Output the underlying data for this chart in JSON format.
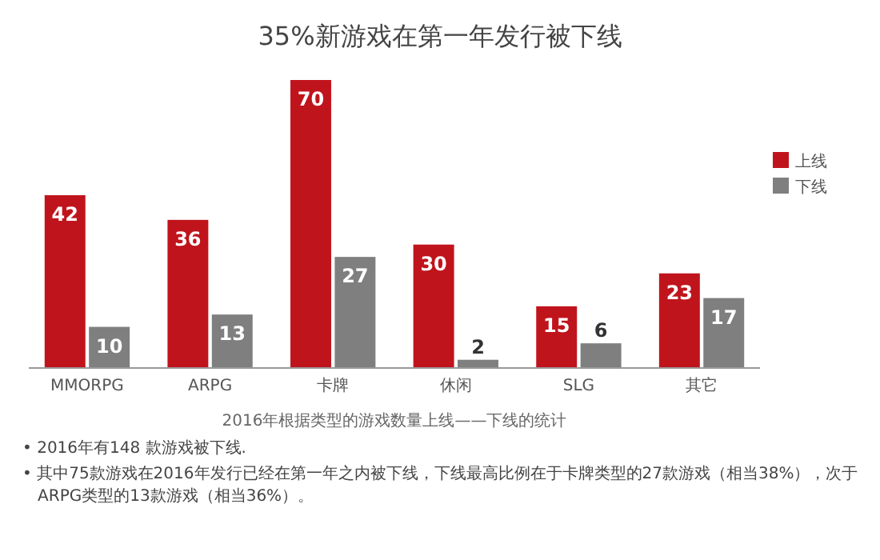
{
  "chart_data": {
    "type": "bar",
    "title": "35%新游戏在第一年发行被下线",
    "subtitle": "2016年根据类型的游戏数量上线——下线的统计",
    "categories": [
      "MMORPG",
      "ARPG",
      "卡牌",
      "休闲",
      "SLG",
      "其它"
    ],
    "series": [
      {
        "name": "上线",
        "color": "#c0141c",
        "values": [
          42,
          36,
          70,
          30,
          15,
          23
        ]
      },
      {
        "name": "下线",
        "color": "#7f7f7f",
        "values": [
          10,
          13,
          27,
          2,
          6,
          17
        ]
      }
    ],
    "data_labels": true,
    "legend": "top right",
    "grid": false,
    "annotations": [
      "• 2016年有148 款游戏被下线.",
      "• 其中75款游戏在2016年发行已经在第一年之内被下线，下线最高比例在于卡牌类型的27款游戏（相当38%），次于ARPG类型的13款游戏（相当36%）。"
    ]
  }
}
